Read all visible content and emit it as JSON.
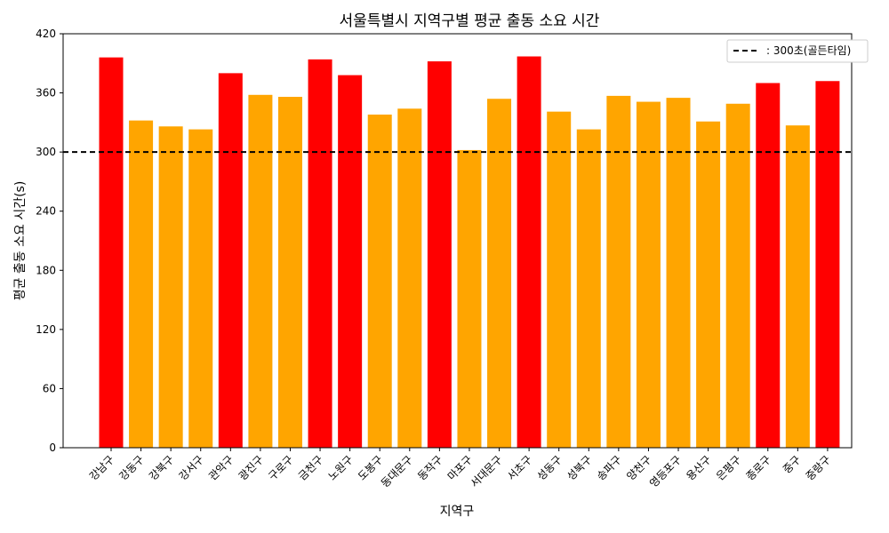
{
  "chart_data": {
    "type": "bar",
    "title": "서울특별시 지역구별 평균 출동 소요 시간",
    "xlabel": "지역구",
    "ylabel": "평균 출동 소요 시간(s)",
    "ylim": [
      0,
      420
    ],
    "yticks": [
      0,
      60,
      120,
      180,
      240,
      300,
      360,
      420
    ],
    "categories": [
      "강남구",
      "강동구",
      "강북구",
      "강서구",
      "관악구",
      "광진구",
      "구로구",
      "금천구",
      "노원구",
      "도봉구",
      "동대문구",
      "동작구",
      "마포구",
      "서대문구",
      "서초구",
      "성동구",
      "성북구",
      "송파구",
      "양천구",
      "영등포구",
      "용산구",
      "은평구",
      "종로구",
      "중구",
      "중랑구"
    ],
    "values": [
      396,
      332,
      326,
      323,
      380,
      358,
      356,
      394,
      378,
      338,
      344,
      392,
      302,
      354,
      397,
      341,
      323,
      357,
      351,
      355,
      331,
      349,
      370,
      327,
      372
    ],
    "bar_colors": [
      "#ff0000",
      "#ffa500",
      "#ffa500",
      "#ffa500",
      "#ff0000",
      "#ffa500",
      "#ffa500",
      "#ff0000",
      "#ff0000",
      "#ffa500",
      "#ffa500",
      "#ff0000",
      "#ffa500",
      "#ffa500",
      "#ff0000",
      "#ffa500",
      "#ffa500",
      "#ffa500",
      "#ffa500",
      "#ffa500",
      "#ffa500",
      "#ffa500",
      "#ff0000",
      "#ffa500",
      "#ff0000"
    ],
    "reference_line": {
      "value": 300,
      "label": ": 300초(골든타임)",
      "style": "dashed",
      "color": "#000000"
    },
    "legend_position": "top-right",
    "grid": false
  }
}
